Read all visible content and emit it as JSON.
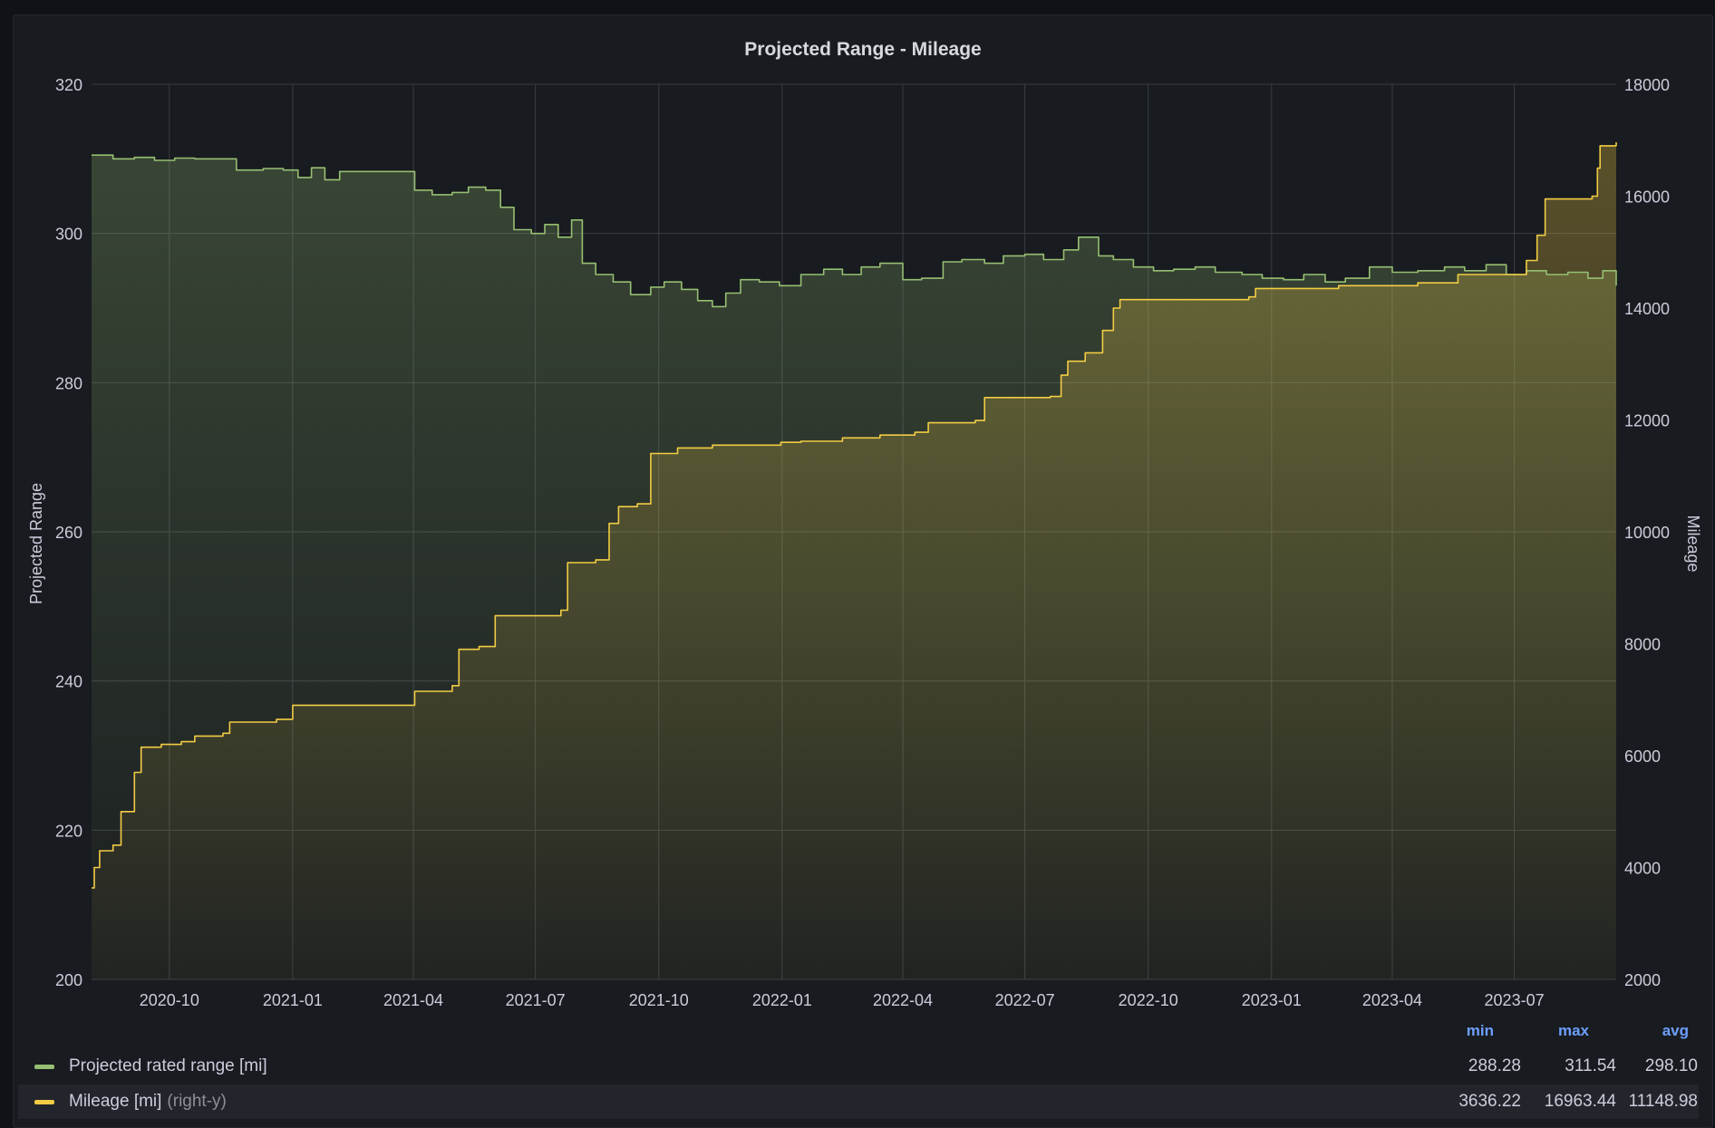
{
  "panel": {
    "title": "Projected Range - Mileage"
  },
  "legend": {
    "headers": {
      "min": "min",
      "max": "max",
      "avg": "avg"
    },
    "rows": [
      {
        "name": "Projected rated range [mi]",
        "axis": "",
        "min": "288.28",
        "max": "311.54",
        "avg": "298.10"
      },
      {
        "name": "Mileage [mi]",
        "axis": "(right-y)",
        "min": "3636.22",
        "max": "16963.44",
        "avg": "11148.98"
      }
    ]
  },
  "colors": {
    "range": "#96bf72",
    "mileage": "#f2cc44",
    "grid": "#3a3d44",
    "text": "#ccccdc",
    "legend_header": "#6e9fff"
  },
  "chart_data": {
    "type": "line",
    "title": "Projected Range - Mileage",
    "xlabel": "",
    "x_ticks": [
      "2020-10",
      "2021-01",
      "2021-04",
      "2021-07",
      "2021-10",
      "2022-01",
      "2022-04",
      "2022-07",
      "2022-10",
      "2023-01",
      "2023-04",
      "2023-07"
    ],
    "x_range": [
      "2020-08-04",
      "2023-09-15"
    ],
    "y_left": {
      "label": "Projected Range",
      "ticks": [
        "200",
        "220",
        "240",
        "260",
        "280",
        "300",
        "320"
      ],
      "range": [
        200,
        320
      ]
    },
    "y_right": {
      "label": "Mileage",
      "ticks": [
        "2000",
        "4000",
        "6000",
        "8000",
        "10000",
        "12000",
        "14000",
        "16000",
        "18000"
      ],
      "range": [
        2000,
        18000
      ]
    },
    "grid": true,
    "legend_position": "bottom",
    "series": [
      {
        "name": "Projected rated range [mi]",
        "axis": "left",
        "fill": true,
        "points": [
          [
            "2020-08-04",
            310.5
          ],
          [
            "2020-08-20",
            310.0
          ],
          [
            "2020-09-05",
            310.2
          ],
          [
            "2020-09-20",
            309.8
          ],
          [
            "2020-10-05",
            310.1
          ],
          [
            "2020-10-20",
            310.0
          ],
          [
            "2020-11-05",
            310.0
          ],
          [
            "2020-11-20",
            308.5
          ],
          [
            "2020-12-10",
            308.7
          ],
          [
            "2020-12-25",
            308.5
          ],
          [
            "2021-01-05",
            307.5
          ],
          [
            "2021-01-15",
            308.8
          ],
          [
            "2021-01-25",
            307.2
          ],
          [
            "2021-02-05",
            308.3
          ],
          [
            "2021-03-01",
            308.3
          ],
          [
            "2021-03-28",
            308.3
          ],
          [
            "2021-04-02",
            305.8
          ],
          [
            "2021-04-15",
            305.2
          ],
          [
            "2021-04-30",
            305.5
          ],
          [
            "2021-05-12",
            306.2
          ],
          [
            "2021-05-25",
            305.8
          ],
          [
            "2021-06-05",
            303.5
          ],
          [
            "2021-06-15",
            300.5
          ],
          [
            "2021-06-28",
            300.0
          ],
          [
            "2021-07-08",
            301.2
          ],
          [
            "2021-07-18",
            299.5
          ],
          [
            "2021-07-28",
            301.8
          ],
          [
            "2021-08-05",
            296.0
          ],
          [
            "2021-08-15",
            294.5
          ],
          [
            "2021-08-28",
            293.5
          ],
          [
            "2021-09-10",
            291.8
          ],
          [
            "2021-09-25",
            292.8
          ],
          [
            "2021-10-05",
            293.5
          ],
          [
            "2021-10-18",
            292.5
          ],
          [
            "2021-10-30",
            291.0
          ],
          [
            "2021-11-10",
            290.2
          ],
          [
            "2021-11-20",
            292.0
          ],
          [
            "2021-12-01",
            293.8
          ],
          [
            "2021-12-15",
            293.5
          ],
          [
            "2021-12-30",
            293.0
          ],
          [
            "2022-01-15",
            294.5
          ],
          [
            "2022-02-01",
            295.2
          ],
          [
            "2022-02-15",
            294.5
          ],
          [
            "2022-03-01",
            295.5
          ],
          [
            "2022-03-15",
            296.0
          ],
          [
            "2022-04-01",
            293.8
          ],
          [
            "2022-04-15",
            294.0
          ],
          [
            "2022-05-01",
            296.2
          ],
          [
            "2022-05-15",
            296.5
          ],
          [
            "2022-06-01",
            296.0
          ],
          [
            "2022-06-15",
            297.0
          ],
          [
            "2022-07-01",
            297.2
          ],
          [
            "2022-07-15",
            296.5
          ],
          [
            "2022-07-30",
            297.8
          ],
          [
            "2022-08-10",
            299.5
          ],
          [
            "2022-08-25",
            297.0
          ],
          [
            "2022-09-05",
            296.5
          ],
          [
            "2022-09-20",
            295.5
          ],
          [
            "2022-10-05",
            295.0
          ],
          [
            "2022-10-20",
            295.2
          ],
          [
            "2022-11-05",
            295.5
          ],
          [
            "2022-11-20",
            294.8
          ],
          [
            "2022-12-10",
            294.5
          ],
          [
            "2022-12-25",
            294.0
          ],
          [
            "2023-01-10",
            293.8
          ],
          [
            "2023-01-25",
            294.5
          ],
          [
            "2023-02-10",
            293.5
          ],
          [
            "2023-02-25",
            294.0
          ],
          [
            "2023-03-15",
            295.5
          ],
          [
            "2023-04-01",
            294.8
          ],
          [
            "2023-04-20",
            295.0
          ],
          [
            "2023-05-10",
            295.5
          ],
          [
            "2023-05-25",
            295.0
          ],
          [
            "2023-06-10",
            295.8
          ],
          [
            "2023-06-25",
            294.5
          ],
          [
            "2023-07-10",
            295.0
          ],
          [
            "2023-07-25",
            294.5
          ],
          [
            "2023-08-10",
            294.8
          ],
          [
            "2023-08-25",
            294.0
          ],
          [
            "2023-09-05",
            295.0
          ],
          [
            "2023-09-15",
            293.0
          ]
        ]
      },
      {
        "name": "Mileage [mi]",
        "axis": "right",
        "fill": true,
        "points": [
          [
            "2020-08-04",
            3636
          ],
          [
            "2020-08-06",
            4000
          ],
          [
            "2020-08-10",
            4300
          ],
          [
            "2020-08-20",
            4400
          ],
          [
            "2020-08-26",
            5000
          ],
          [
            "2020-09-05",
            5700
          ],
          [
            "2020-09-10",
            6150
          ],
          [
            "2020-09-25",
            6200
          ],
          [
            "2020-10-10",
            6250
          ],
          [
            "2020-10-20",
            6350
          ],
          [
            "2020-11-10",
            6400
          ],
          [
            "2020-11-15",
            6600
          ],
          [
            "2020-12-20",
            6650
          ],
          [
            "2021-01-01",
            6900
          ],
          [
            "2021-03-30",
            6900
          ],
          [
            "2021-04-02",
            7150
          ],
          [
            "2021-04-30",
            7250
          ],
          [
            "2021-05-05",
            7900
          ],
          [
            "2021-05-20",
            7950
          ],
          [
            "2021-06-01",
            8500
          ],
          [
            "2021-07-20",
            8600
          ],
          [
            "2021-07-25",
            9450
          ],
          [
            "2021-08-15",
            9500
          ],
          [
            "2021-08-25",
            10150
          ],
          [
            "2021-09-01",
            10450
          ],
          [
            "2021-09-15",
            10500
          ],
          [
            "2021-09-25",
            11400
          ],
          [
            "2021-10-15",
            11500
          ],
          [
            "2021-11-10",
            11550
          ],
          [
            "2021-12-31",
            11600
          ],
          [
            "2022-01-15",
            11620
          ],
          [
            "2022-02-15",
            11680
          ],
          [
            "2022-03-15",
            11730
          ],
          [
            "2022-04-10",
            11780
          ],
          [
            "2022-04-20",
            11950
          ],
          [
            "2022-05-25",
            11990
          ],
          [
            "2022-06-01",
            12400
          ],
          [
            "2022-07-20",
            12420
          ],
          [
            "2022-07-28",
            12800
          ],
          [
            "2022-08-02",
            13050
          ],
          [
            "2022-08-15",
            13200
          ],
          [
            "2022-08-28",
            13600
          ],
          [
            "2022-09-05",
            14000
          ],
          [
            "2022-09-10",
            14150
          ],
          [
            "2022-10-10",
            14150
          ],
          [
            "2022-12-15",
            14200
          ],
          [
            "2022-12-20",
            14350
          ],
          [
            "2023-02-20",
            14400
          ],
          [
            "2023-04-20",
            14450
          ],
          [
            "2023-05-20",
            14600
          ],
          [
            "2023-07-10",
            14850
          ],
          [
            "2023-07-18",
            15300
          ],
          [
            "2023-07-24",
            15950
          ],
          [
            "2023-08-28",
            16000
          ],
          [
            "2023-09-01",
            16500
          ],
          [
            "2023-09-03",
            16900
          ],
          [
            "2023-09-15",
            16963
          ]
        ]
      }
    ]
  }
}
